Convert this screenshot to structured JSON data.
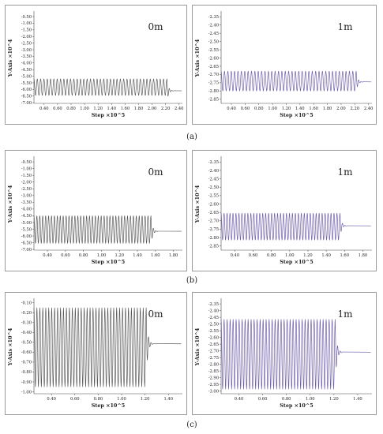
{
  "colors": {
    "depth_0m": "#555555",
    "depth_1m": "#6a58a8"
  },
  "captions": [
    "(a)",
    "(b)",
    "(c)"
  ],
  "chart_data": [
    {
      "type": "line",
      "label": "0m",
      "xlabel": "Step ×10^5",
      "ylabel": "Y-Axis ×10^4",
      "xlim": [
        0.25,
        2.45
      ],
      "ylim": [
        -7.05,
        -0.2
      ],
      "xticks": [
        0.4,
        0.6,
        0.8,
        1.0,
        1.2,
        1.4,
        1.6,
        1.8,
        2.0,
        2.2,
        2.4
      ],
      "xtick_labels": [
        "0.40",
        "0.60",
        "0.80",
        "1.00",
        "1.20",
        "1.40",
        "1.60",
        "1.80",
        "2.00",
        "2.20",
        "2.40"
      ],
      "yticks": [
        -0.5,
        -1.0,
        -1.5,
        -2.0,
        -2.5,
        -3.0,
        -3.5,
        -4.0,
        -4.5,
        -5.0,
        -5.5,
        -6.0,
        -6.5,
        -7.0
      ],
      "ytick_labels": [
        "-0.50",
        "-1.00",
        "-1.50",
        "-2.00",
        "-2.50",
        "-3.00",
        "-3.50",
        "-4.00",
        "-4.50",
        "-5.00",
        "-5.50",
        "-6.00",
        "-6.50",
        "-7.00"
      ],
      "series": [
        {
          "color": "#555555",
          "oscillation": {
            "x_start": 0.25,
            "x_end": 2.22,
            "cycles": 40,
            "max": -5.2,
            "min": -6.45
          },
          "settled": {
            "x_end": 2.44,
            "value": -6.1
          }
        }
      ]
    },
    {
      "type": "line",
      "label": "1m",
      "xlabel": "Step ×10^5",
      "ylabel": "Y-Axis ×10^4",
      "xlim": [
        0.25,
        2.45
      ],
      "ylim": [
        -2.875,
        -2.325
      ],
      "xticks": [
        0.4,
        0.6,
        0.8,
        1.0,
        1.2,
        1.4,
        1.6,
        1.8,
        2.0,
        2.2,
        2.4
      ],
      "xtick_labels": [
        "0.40",
        "0.60",
        "0.80",
        "1.00",
        "1.20",
        "1.40",
        "1.60",
        "1.80",
        "2.00",
        "2.20",
        "2.40"
      ],
      "yticks": [
        -2.35,
        -2.4,
        -2.45,
        -2.5,
        -2.55,
        -2.6,
        -2.65,
        -2.7,
        -2.75,
        -2.8,
        -2.85
      ],
      "ytick_labels": [
        "-2.35",
        "-2.40",
        "-2.45",
        "-2.50",
        "-2.55",
        "-2.60",
        "-2.65",
        "-2.70",
        "-2.75",
        "-2.80",
        "-2.85"
      ],
      "series": [
        {
          "color": "#6a58a8",
          "oscillation": {
            "x_start": 0.25,
            "x_end": 2.22,
            "cycles": 40,
            "max": -2.68,
            "min": -2.8
          },
          "settled": {
            "x_end": 2.44,
            "value": -2.745
          }
        }
      ]
    },
    {
      "type": "line",
      "label": "0m",
      "xlabel": "Step ×10^5",
      "ylabel": "Y-Axis ×10^4",
      "xlim": [
        0.25,
        1.9
      ],
      "ylim": [
        -7.05,
        -0.2
      ],
      "xticks": [
        0.4,
        0.6,
        0.8,
        1.0,
        1.2,
        1.4,
        1.6,
        1.8
      ],
      "xtick_labels": [
        "0.40",
        "0.60",
        "0.80",
        "1.00",
        "1.20",
        "1.40",
        "1.60",
        "1.80"
      ],
      "yticks": [
        -0.5,
        -1.0,
        -1.5,
        -2.0,
        -2.5,
        -3.0,
        -3.5,
        -4.0,
        -4.5,
        -5.0,
        -5.5,
        -6.0,
        -6.5,
        -7.0
      ],
      "ytick_labels": [
        "-0.50",
        "-1.00",
        "-1.50",
        "-2.00",
        "-2.50",
        "-3.00",
        "-3.50",
        "-4.00",
        "-4.50",
        "-5.00",
        "-5.50",
        "-6.00",
        "-6.50",
        "-7.00"
      ],
      "series": [
        {
          "color": "#555555",
          "oscillation": {
            "x_start": 0.25,
            "x_end": 1.55,
            "cycles": 40,
            "max": -4.5,
            "min": -6.55
          },
          "settled": {
            "x_end": 1.89,
            "value": -5.65
          }
        }
      ]
    },
    {
      "type": "line",
      "label": "1m",
      "xlabel": "Step ×10^5",
      "ylabel": "Y-Axis ×10^4",
      "xlim": [
        0.25,
        1.9
      ],
      "ylim": [
        -2.875,
        -2.325
      ],
      "xticks": [
        0.4,
        0.6,
        0.8,
        1.0,
        1.2,
        1.4,
        1.6,
        1.8
      ],
      "xtick_labels": [
        "0.40",
        "0.60",
        "0.80",
        "1.00",
        "1.20",
        "1.40",
        "1.60",
        "1.80"
      ],
      "yticks": [
        -2.35,
        -2.4,
        -2.45,
        -2.5,
        -2.55,
        -2.6,
        -2.65,
        -2.7,
        -2.75,
        -2.8,
        -2.85
      ],
      "ytick_labels": [
        "-2.35",
        "-2.40",
        "-2.45",
        "-2.50",
        "-2.55",
        "-2.60",
        "-2.65",
        "-2.70",
        "-2.75",
        "-2.80",
        "-2.85"
      ],
      "series": [
        {
          "color": "#6a58a8",
          "oscillation": {
            "x_start": 0.25,
            "x_end": 1.55,
            "cycles": 40,
            "max": -2.655,
            "min": -2.815
          },
          "settled": {
            "x_end": 1.89,
            "value": -2.73
          }
        }
      ]
    },
    {
      "type": "line",
      "label": "0m",
      "xlabel": "Step ×10^5",
      "ylabel": "Y-Axis ×10^4",
      "xlim": [
        0.25,
        1.52
      ],
      "ylim": [
        -1.02,
        -0.07
      ],
      "xticks": [
        0.4,
        0.6,
        0.8,
        1.0,
        1.2,
        1.4
      ],
      "xtick_labels": [
        "0.40",
        "0.60",
        "0.80",
        "1.00",
        "1.20",
        "1.40"
      ],
      "yticks": [
        -0.1,
        -0.2,
        -0.3,
        -0.4,
        -0.5,
        -0.6,
        -0.7,
        -0.8,
        -0.9,
        -1.0
      ],
      "ytick_labels": [
        "-0.10",
        "-0.20",
        "-0.30",
        "-0.40",
        "-0.50",
        "-0.60",
        "-0.70",
        "-0.80",
        "-0.90",
        "-1.00"
      ],
      "series": [
        {
          "color": "#555555",
          "oscillation": {
            "x_start": 0.25,
            "x_end": 1.21,
            "cycles": 38,
            "max": -0.15,
            "min": -0.95
          },
          "settled": {
            "x_end": 1.51,
            "value": -0.515
          }
        }
      ]
    },
    {
      "type": "line",
      "label": "1m",
      "xlabel": "Step ×10^5",
      "ylabel": "Y-Axis ×10^4",
      "xlim": [
        0.25,
        1.52
      ],
      "ylim": [
        -3.02,
        -2.32
      ],
      "xticks": [
        0.4,
        0.6,
        0.8,
        1.0,
        1.2,
        1.4
      ],
      "xtick_labels": [
        "0.40",
        "0.60",
        "0.80",
        "1.00",
        "1.20",
        "1.40"
      ],
      "yticks": [
        -2.35,
        -2.4,
        -2.45,
        -2.5,
        -2.55,
        -2.6,
        -2.65,
        -2.7,
        -2.75,
        -2.8,
        -2.85,
        -2.9,
        -2.95,
        -3.0
      ],
      "ytick_labels": [
        "-2.35",
        "-2.40",
        "-2.45",
        "-2.50",
        "-2.55",
        "-2.60",
        "-2.65",
        "-2.70",
        "-2.75",
        "-2.80",
        "-2.85",
        "-2.90",
        "-2.95",
        "-3.00"
      ],
      "series": [
        {
          "color": "#6a58a8",
          "oscillation": {
            "x_start": 0.25,
            "x_end": 1.21,
            "cycles": 38,
            "max": -2.465,
            "min": -2.985
          },
          "settled": {
            "x_end": 1.51,
            "value": -2.71
          }
        }
      ]
    }
  ]
}
